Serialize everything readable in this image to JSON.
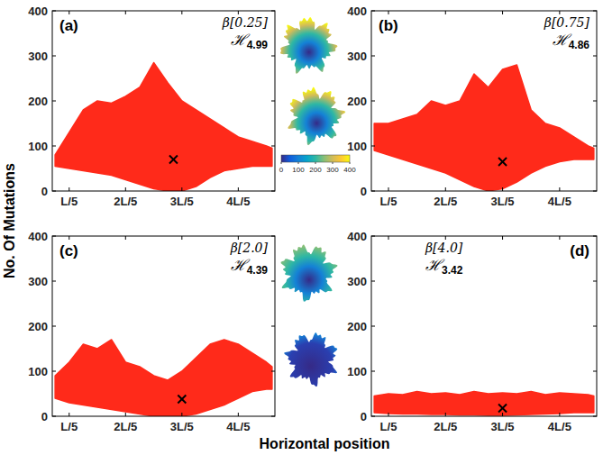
{
  "xlabel": "Horizontal position",
  "ylabel": "No. Of Mutations",
  "colorbar": {
    "range": [
      0,
      400
    ],
    "ticks": [
      0,
      100,
      200,
      300,
      400
    ]
  },
  "chart_data": [
    {
      "type": "scatter",
      "title": "(a)",
      "annotations": [
        {
          "text": "β[0.25]"
        },
        {
          "text": "ℋ",
          "subscript": "4.99"
        }
      ],
      "x": [
        0.15,
        0.2,
        0.25,
        0.3,
        0.35,
        0.4,
        0.45,
        0.5,
        0.55,
        0.6,
        0.65,
        0.7,
        0.75,
        0.8,
        0.85,
        0.9,
        0.92
      ],
      "xlim": [
        0.14,
        0.93
      ],
      "ylim": [
        0,
        400
      ],
      "xticks": [
        {
          "value": 0.2,
          "label": "L/5"
        },
        {
          "value": 0.4,
          "label": "2L/5"
        },
        {
          "value": 0.6,
          "label": "3L/5"
        },
        {
          "value": 0.8,
          "label": "4L/5"
        }
      ],
      "yticks": [
        0,
        100,
        200,
        300,
        400
      ],
      "series": [
        {
          "type": "area",
          "color": "#ff2a1a",
          "values": [
            80,
            130,
            180,
            200,
            195,
            210,
            230,
            285,
            240,
            200,
            180,
            160,
            140,
            120,
            110,
            100,
            95
          ],
          "lower": [
            55,
            50,
            45,
            40,
            35,
            25,
            15,
            5,
            0,
            0,
            10,
            30,
            45,
            50,
            55,
            55,
            55
          ]
        },
        {
          "type": "scatter",
          "marker": "x",
          "color": "#000000",
          "x": [
            0.57
          ],
          "values": [
            70
          ]
        }
      ]
    },
    {
      "type": "scatter",
      "title": "(b)",
      "annotations": [
        {
          "text": "β[0.75]"
        },
        {
          "text": "ℋ",
          "subscript": "4.86"
        }
      ],
      "x": [
        0.15,
        0.2,
        0.25,
        0.3,
        0.35,
        0.4,
        0.45,
        0.5,
        0.55,
        0.6,
        0.65,
        0.7,
        0.75,
        0.8,
        0.85,
        0.9,
        0.92
      ],
      "xlim": [
        0.14,
        0.93
      ],
      "ylim": [
        0,
        400
      ],
      "xticks": [
        {
          "value": 0.2,
          "label": "L/5"
        },
        {
          "value": 0.4,
          "label": "2L/5"
        },
        {
          "value": 0.6,
          "label": "3L/5"
        },
        {
          "value": 0.8,
          "label": "4L/5"
        }
      ],
      "yticks": [
        0,
        100,
        200,
        300,
        400
      ],
      "series": [
        {
          "type": "area",
          "color": "#ff2a1a",
          "values": [
            150,
            150,
            160,
            170,
            200,
            190,
            200,
            260,
            230,
            270,
            280,
            180,
            150,
            140,
            120,
            100,
            95
          ],
          "lower": [
            90,
            80,
            70,
            60,
            50,
            40,
            25,
            10,
            0,
            5,
            20,
            40,
            55,
            65,
            70,
            70,
            70
          ]
        },
        {
          "type": "scatter",
          "marker": "x",
          "color": "#000000",
          "x": [
            0.6
          ],
          "values": [
            65
          ]
        }
      ]
    },
    {
      "type": "scatter",
      "title": "(c)",
      "annotations": [
        {
          "text": "β[2.0]"
        },
        {
          "text": "ℋ",
          "subscript": "4.39"
        }
      ],
      "x": [
        0.15,
        0.2,
        0.25,
        0.3,
        0.35,
        0.4,
        0.45,
        0.5,
        0.55,
        0.6,
        0.65,
        0.7,
        0.75,
        0.8,
        0.85,
        0.9,
        0.92
      ],
      "xlim": [
        0.14,
        0.93
      ],
      "ylim": [
        0,
        400
      ],
      "xticks": [
        {
          "value": 0.2,
          "label": "L/5"
        },
        {
          "value": 0.4,
          "label": "2L/5"
        },
        {
          "value": 0.6,
          "label": "3L/5"
        },
        {
          "value": 0.8,
          "label": "4L/5"
        }
      ],
      "yticks": [
        0,
        100,
        200,
        300,
        400
      ],
      "series": [
        {
          "type": "area",
          "color": "#ff2a1a",
          "values": [
            90,
            120,
            160,
            150,
            170,
            120,
            110,
            90,
            80,
            100,
            130,
            160,
            170,
            160,
            140,
            120,
            110
          ],
          "lower": [
            40,
            30,
            25,
            20,
            15,
            10,
            5,
            0,
            0,
            0,
            5,
            15,
            25,
            40,
            55,
            60,
            60
          ]
        },
        {
          "type": "scatter",
          "marker": "x",
          "color": "#000000",
          "x": [
            0.6
          ],
          "values": [
            38
          ]
        }
      ]
    },
    {
      "type": "scatter",
      "title": "(d)",
      "annotations": [
        {
          "text": "β[4.0]"
        },
        {
          "text": "ℋ",
          "subscript": "3.42"
        }
      ],
      "x": [
        0.15,
        0.2,
        0.25,
        0.3,
        0.35,
        0.4,
        0.45,
        0.5,
        0.55,
        0.6,
        0.65,
        0.7,
        0.75,
        0.8,
        0.85,
        0.9,
        0.92
      ],
      "xlim": [
        0.14,
        0.93
      ],
      "ylim": [
        0,
        400
      ],
      "xticks": [
        {
          "value": 0.2,
          "label": "L/5"
        },
        {
          "value": 0.4,
          "label": "2L/5"
        },
        {
          "value": 0.6,
          "label": "3L/5"
        },
        {
          "value": 0.8,
          "label": "4L/5"
        }
      ],
      "yticks": [
        0,
        100,
        200,
        300,
        400
      ],
      "series": [
        {
          "type": "area",
          "color": "#ff2a1a",
          "values": [
            45,
            50,
            48,
            55,
            50,
            52,
            48,
            55,
            50,
            52,
            50,
            55,
            48,
            52,
            50,
            48,
            45
          ],
          "lower": [
            8,
            6,
            5,
            5,
            4,
            4,
            3,
            3,
            2,
            2,
            3,
            4,
            5,
            6,
            8,
            8,
            8
          ]
        },
        {
          "type": "scatter",
          "marker": "x",
          "color": "#000000",
          "x": [
            0.6
          ],
          "values": [
            18
          ]
        }
      ]
    }
  ]
}
